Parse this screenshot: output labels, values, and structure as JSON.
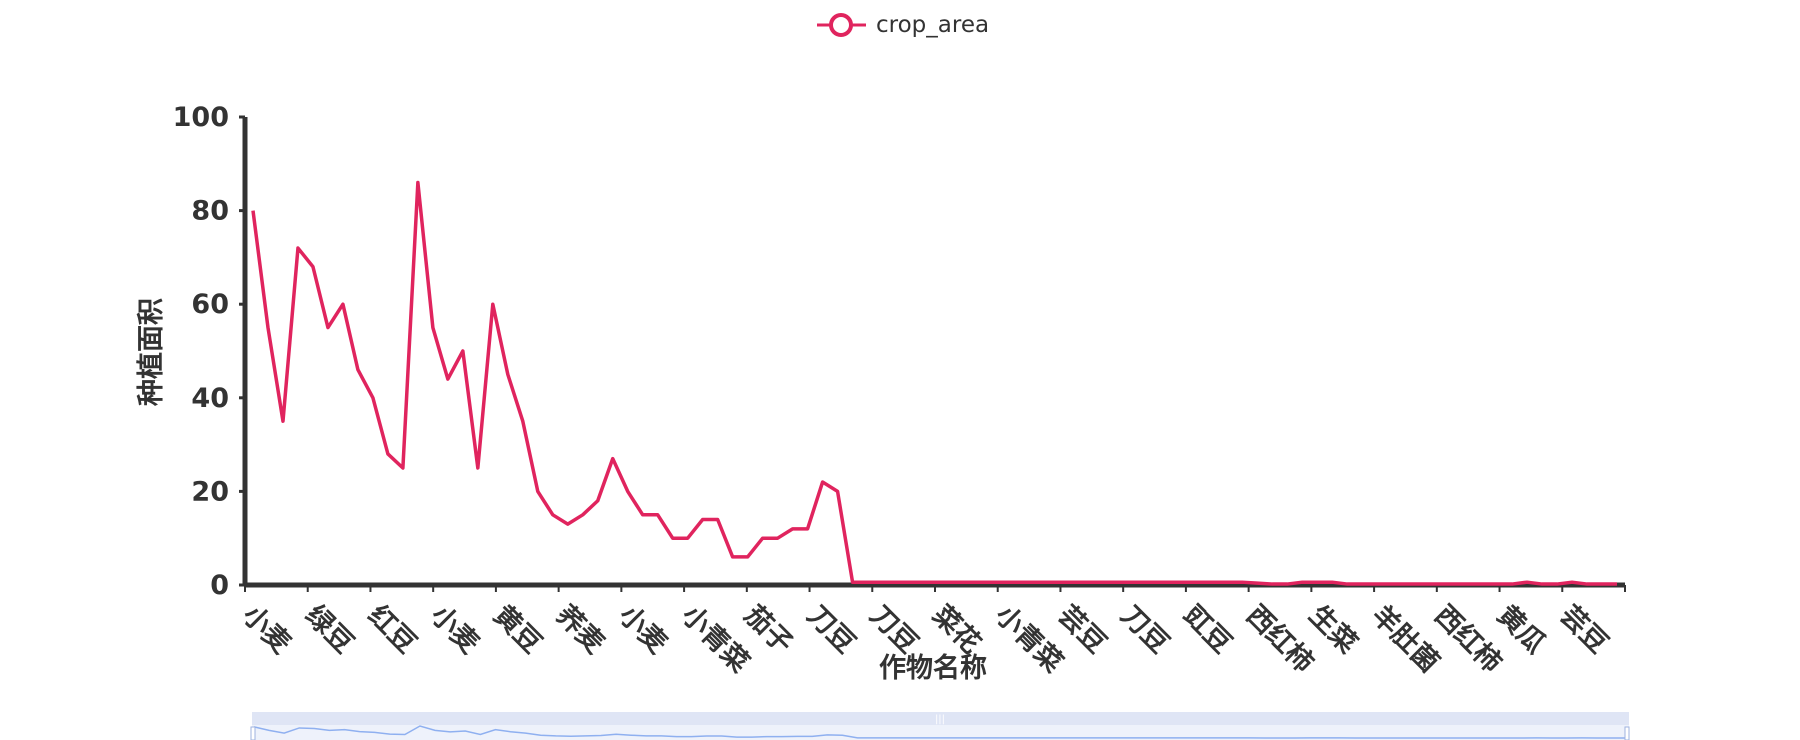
{
  "colors": {
    "series": "#e0245e",
    "axis": "#333333",
    "zoom_fill": "#e2e7f5",
    "zoom_line": "#8fb0f0"
  },
  "legend": {
    "label": "crop_area",
    "icon": "circle-line-icon"
  },
  "chart_data": {
    "type": "line",
    "xlabel": "作物名称",
    "ylabel": "种植面积",
    "ylim": [
      0,
      100
    ],
    "yticks": [
      0,
      20,
      40,
      60,
      80,
      100
    ],
    "xtick_labels": [
      "小麦",
      "绿豆",
      "红豆",
      "小麦",
      "黄豆",
      "荞麦",
      "小麦",
      "小青菜",
      "茄子",
      "刀豆",
      "刀豆",
      "菜花",
      "小青菜",
      "芸豆",
      "刀豆",
      "豇豆",
      "西红柿",
      "生菜",
      "羊肚菌",
      "西红柿",
      "黄瓜",
      "芸豆"
    ],
    "legend_position": "top",
    "grid": false,
    "series": [
      {
        "name": "crop_area",
        "values": [
          80,
          55,
          35,
          72,
          68,
          55,
          60,
          46,
          40,
          28,
          25,
          86,
          55,
          44,
          50,
          25,
          60,
          45,
          35,
          20,
          15,
          13,
          15,
          18,
          27,
          20,
          15,
          15,
          10,
          10,
          14,
          14,
          6,
          6,
          10,
          10,
          12,
          12,
          22,
          20,
          0.6,
          0.6,
          0.6,
          0.6,
          0.6,
          0.6,
          0.6,
          0.6,
          0.6,
          0.6,
          0.6,
          0.6,
          0.6,
          0.6,
          0.6,
          0.6,
          0.6,
          0.6,
          0.6,
          0.6,
          0.6,
          0.6,
          0.6,
          0.6,
          0.6,
          0.6,
          0.6,
          0.4,
          0.2,
          0.2,
          0.6,
          0.6,
          0.6,
          0.2,
          0.2,
          0.2,
          0.2,
          0.2,
          0.2,
          0.2,
          0.2,
          0.2,
          0.2,
          0.2,
          0.2,
          0.6,
          0.2,
          0.2,
          0.6,
          0.2,
          0.2,
          0.2
        ]
      }
    ]
  }
}
